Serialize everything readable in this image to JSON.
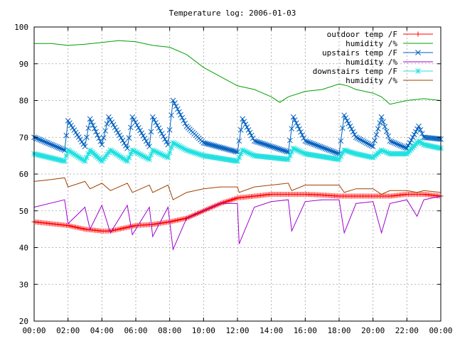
{
  "chart_data": {
    "type": "line",
    "title": "Temperature log: 2006-01-03",
    "xlabel": "",
    "ylabel": "",
    "xlim": [
      0,
      24
    ],
    "ylim": [
      20,
      100
    ],
    "grid": true,
    "legend_position": "top-right",
    "x_ticks": [
      "00:00",
      "02:00",
      "04:00",
      "06:00",
      "08:00",
      "10:00",
      "12:00",
      "14:00",
      "16:00",
      "18:00",
      "20:00",
      "22:00",
      "00:00"
    ],
    "y_ticks": [
      "20",
      "30",
      "40",
      "50",
      "60",
      "70",
      "80",
      "90",
      "100"
    ],
    "series": [
      {
        "name": "outdoor temp /F",
        "color": "#ff0000",
        "marker": "plus",
        "points": [
          [
            0,
            47
          ],
          [
            1,
            46.5
          ],
          [
            2,
            46
          ],
          [
            3,
            45
          ],
          [
            4,
            44.5
          ],
          [
            4.5,
            44.5
          ],
          [
            5,
            45
          ],
          [
            6,
            46
          ],
          [
            7,
            46.3
          ],
          [
            8,
            47
          ],
          [
            9,
            48
          ],
          [
            10,
            50
          ],
          [
            11,
            52
          ],
          [
            12,
            53.5
          ],
          [
            13,
            54
          ],
          [
            14,
            54.5
          ],
          [
            15,
            54.5
          ],
          [
            16,
            54.5
          ],
          [
            17,
            54.3
          ],
          [
            18,
            54
          ],
          [
            19,
            54
          ],
          [
            20,
            54
          ],
          [
            21,
            54
          ],
          [
            22,
            54.5
          ],
          [
            23,
            54.5
          ],
          [
            24,
            54
          ]
        ]
      },
      {
        "name": "humidity /%",
        "color": "#00a000",
        "marker": "none",
        "points": [
          [
            0,
            95.5
          ],
          [
            1,
            95.5
          ],
          [
            2,
            95
          ],
          [
            3,
            95.3
          ],
          [
            4,
            95.8
          ],
          [
            5,
            96.3
          ],
          [
            6,
            96
          ],
          [
            7,
            95
          ],
          [
            8,
            94.5
          ],
          [
            9,
            92.5
          ],
          [
            10,
            89
          ],
          [
            11,
            86.5
          ],
          [
            12,
            84
          ],
          [
            13,
            83
          ],
          [
            14,
            81
          ],
          [
            14.5,
            79.5
          ],
          [
            15,
            81
          ],
          [
            16,
            82.5
          ],
          [
            17,
            83
          ],
          [
            18,
            84.5
          ],
          [
            18.5,
            84
          ],
          [
            19,
            83
          ],
          [
            20,
            82
          ],
          [
            20.5,
            81
          ],
          [
            21,
            79
          ],
          [
            22,
            80
          ],
          [
            23,
            80.5
          ],
          [
            24,
            80
          ]
        ]
      },
      {
        "name": "upstairs temp /F",
        "color": "#0060c0",
        "marker": "x",
        "points": [
          [
            0,
            70
          ],
          [
            1.8,
            66.5
          ],
          [
            2,
            74.5
          ],
          [
            3,
            67.5
          ],
          [
            3.3,
            75
          ],
          [
            4,
            68
          ],
          [
            4.4,
            75.5
          ],
          [
            5.5,
            67
          ],
          [
            5.8,
            75.5
          ],
          [
            6.8,
            67.5
          ],
          [
            7,
            75.5
          ],
          [
            7.9,
            68
          ],
          [
            8.2,
            80
          ],
          [
            9,
            73
          ],
          [
            10,
            68.5
          ],
          [
            12,
            66
          ],
          [
            12.3,
            75
          ],
          [
            13,
            69
          ],
          [
            15,
            66
          ],
          [
            15.3,
            75.5
          ],
          [
            16,
            69
          ],
          [
            18,
            65.5
          ],
          [
            18.3,
            76
          ],
          [
            19,
            70
          ],
          [
            20,
            67.5
          ],
          [
            20.5,
            75.5
          ],
          [
            21,
            69
          ],
          [
            22,
            67
          ],
          [
            22.7,
            73
          ],
          [
            23,
            70
          ],
          [
            24,
            69.5
          ]
        ]
      },
      {
        "name": "humidity /%",
        "color": "#a000d0",
        "marker": "none",
        "points": [
          [
            0,
            51
          ],
          [
            1.8,
            53
          ],
          [
            2,
            46.5
          ],
          [
            3,
            51
          ],
          [
            3.3,
            45
          ],
          [
            4,
            51.5
          ],
          [
            4.5,
            44
          ],
          [
            5.5,
            51.5
          ],
          [
            5.8,
            43.5
          ],
          [
            6.8,
            51
          ],
          [
            7,
            43
          ],
          [
            7.9,
            51
          ],
          [
            8.2,
            39.5
          ],
          [
            9,
            48
          ],
          [
            10,
            50
          ],
          [
            11,
            52
          ],
          [
            12,
            52
          ],
          [
            12.1,
            41
          ],
          [
            13,
            51
          ],
          [
            14,
            52.5
          ],
          [
            15,
            53
          ],
          [
            15.2,
            44.5
          ],
          [
            16,
            52.5
          ],
          [
            17,
            53
          ],
          [
            18,
            53
          ],
          [
            18.3,
            44
          ],
          [
            19,
            52
          ],
          [
            20,
            52.5
          ],
          [
            20.5,
            44
          ],
          [
            21,
            52
          ],
          [
            22,
            53
          ],
          [
            22.6,
            48.5
          ],
          [
            23,
            53
          ],
          [
            24,
            54
          ]
        ]
      },
      {
        "name": "downstairs temp /F",
        "color": "#20e0e0",
        "marker": "star",
        "points": [
          [
            0,
            65.5
          ],
          [
            1.8,
            63.5
          ],
          [
            2,
            66.5
          ],
          [
            3,
            63.5
          ],
          [
            3.3,
            66.5
          ],
          [
            4,
            63.5
          ],
          [
            4.5,
            66.5
          ],
          [
            5.5,
            63.5
          ],
          [
            5.8,
            66.5
          ],
          [
            6.8,
            64
          ],
          [
            7,
            66.5
          ],
          [
            7.9,
            64.5
          ],
          [
            8.2,
            68.5
          ],
          [
            9,
            66.5
          ],
          [
            10,
            65
          ],
          [
            12,
            63.5
          ],
          [
            12.3,
            66.5
          ],
          [
            13,
            65
          ],
          [
            15,
            64
          ],
          [
            15.3,
            67
          ],
          [
            16,
            65.5
          ],
          [
            18,
            64
          ],
          [
            18.3,
            66.5
          ],
          [
            19,
            65.5
          ],
          [
            20,
            64.5
          ],
          [
            20.5,
            66.5
          ],
          [
            21,
            65.5
          ],
          [
            22,
            65.5
          ],
          [
            22.7,
            69
          ],
          [
            23,
            68
          ],
          [
            24,
            67
          ]
        ]
      },
      {
        "name": "humidity /%",
        "color": "#a04000",
        "marker": "none",
        "points": [
          [
            0,
            58
          ],
          [
            1,
            58.5
          ],
          [
            1.8,
            59
          ],
          [
            2,
            56.5
          ],
          [
            3,
            58
          ],
          [
            3.3,
            56
          ],
          [
            4,
            57.5
          ],
          [
            4.5,
            55.5
          ],
          [
            5.5,
            57.5
          ],
          [
            5.8,
            55
          ],
          [
            6.8,
            57
          ],
          [
            7,
            55
          ],
          [
            7.9,
            57
          ],
          [
            8.2,
            53
          ],
          [
            9,
            55
          ],
          [
            10,
            56
          ],
          [
            11,
            56.5
          ],
          [
            12,
            56.5
          ],
          [
            12.1,
            55
          ],
          [
            13,
            56.5
          ],
          [
            14,
            57
          ],
          [
            15,
            57.5
          ],
          [
            15.2,
            55.5
          ],
          [
            16,
            57
          ],
          [
            18,
            57
          ],
          [
            18.3,
            55
          ],
          [
            19,
            56
          ],
          [
            20,
            56
          ],
          [
            20.5,
            54.5
          ],
          [
            21,
            55.5
          ],
          [
            22,
            55.5
          ],
          [
            22.6,
            55
          ],
          [
            23,
            55.5
          ],
          [
            24,
            55
          ]
        ]
      }
    ]
  }
}
